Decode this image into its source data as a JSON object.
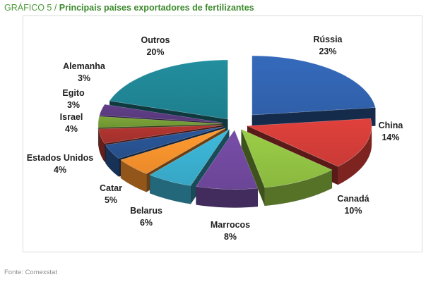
{
  "figure": {
    "prefix": "GRÁFICO 5 / ",
    "title": "Principais países exportadores de fertilizantes",
    "source": "Fonte: Comexstat"
  },
  "colors": {
    "title_green": "#3c8a2c",
    "label_text": "#1f1f1f"
  },
  "chart_data": {
    "type": "pie",
    "style": "3d-exploded",
    "title": "Principais países exportadores de fertilizantes",
    "categories": [
      "Rússia",
      "China",
      "Canadá",
      "Marrocos",
      "Belarus",
      "Catar",
      "Estados Unidos",
      "Israel",
      "Egito",
      "Alemanha",
      "Outros"
    ],
    "values": [
      23,
      14,
      10,
      8,
      6,
      5,
      4,
      4,
      3,
      3,
      20
    ],
    "labels": [
      "23%",
      "14%",
      "10%",
      "8%",
      "6%",
      "5%",
      "4%",
      "4%",
      "3%",
      "3%",
      "20%"
    ],
    "colors": [
      "#2f5fa8",
      "#c93a36",
      "#8ab83f",
      "#6b4596",
      "#37a6c4",
      "#eb8a2a",
      "#264f8a",
      "#a1302c",
      "#6f9432",
      "#57387a",
      "#1e7f8d"
    ],
    "legend": "none"
  }
}
